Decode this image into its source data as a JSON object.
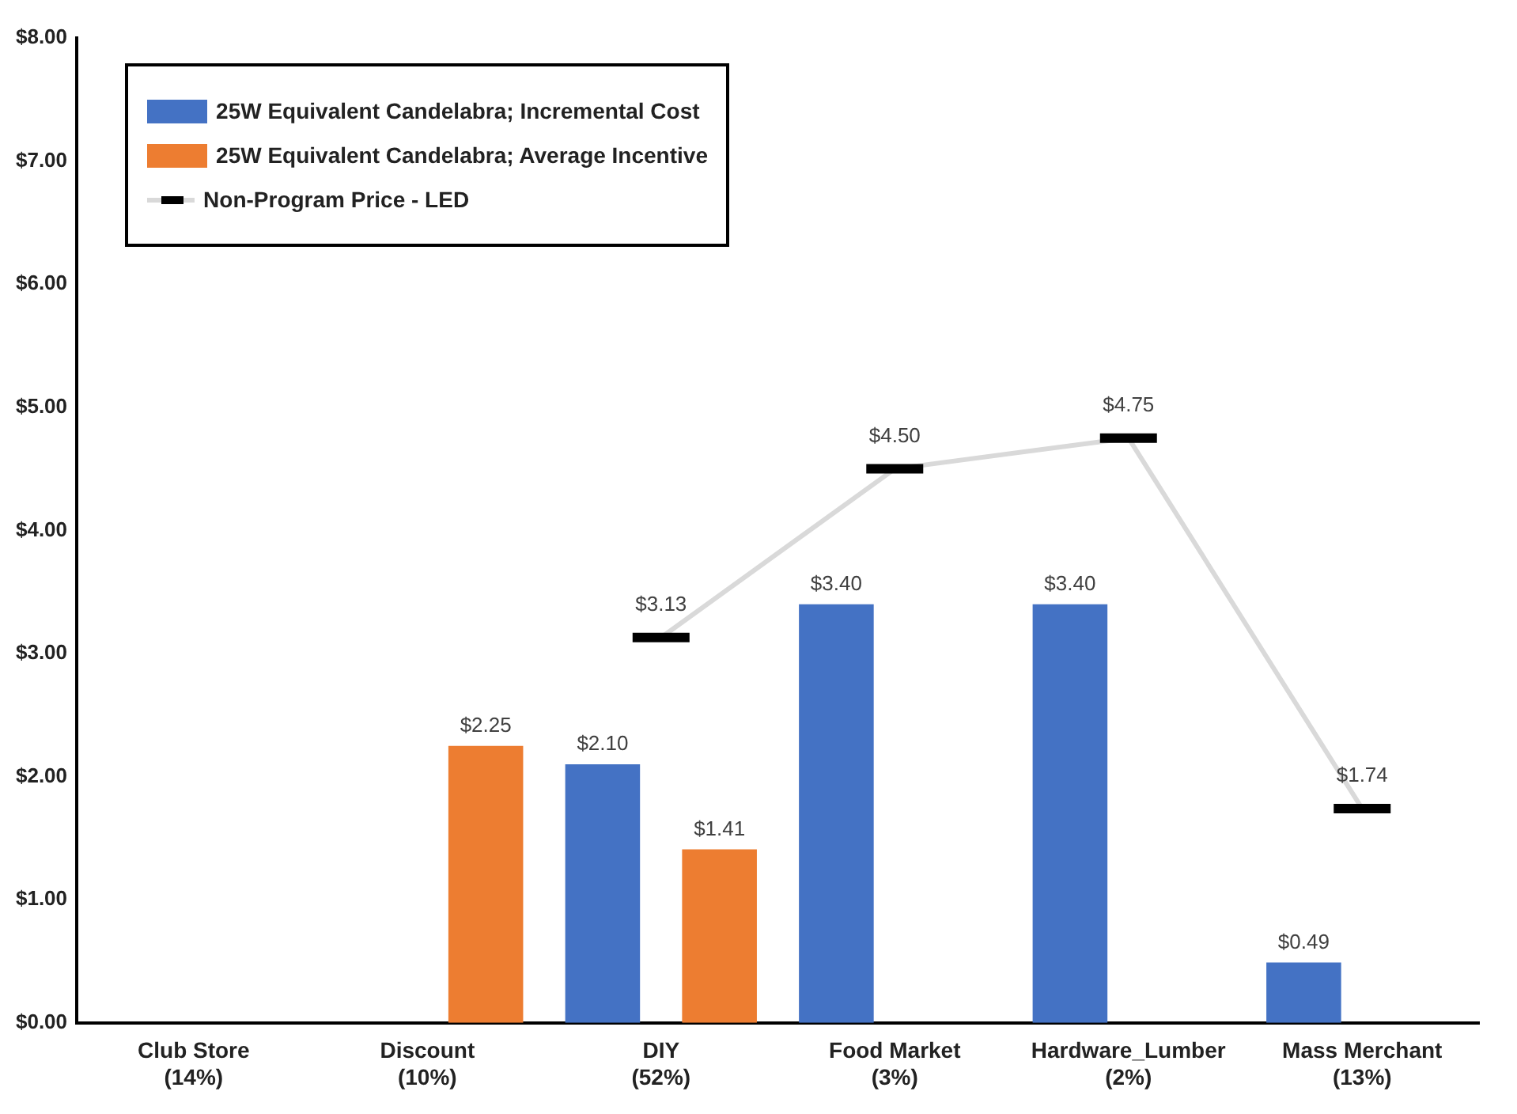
{
  "chart_data": {
    "type": "bar",
    "categories": [
      "Club Store\n(14%)",
      "Discount\n(10%)",
      "DIY\n(52%)",
      "Food Market\n(3%)",
      "Hardware_Lumber\n(2%)",
      "Mass Merchant\n(13%)"
    ],
    "series": [
      {
        "name": "25W Equivalent Candelabra;  Incremental Cost",
        "color": "#4472c4",
        "values": [
          null,
          null,
          2.1,
          3.4,
          3.4,
          0.49
        ],
        "value_labels": [
          null,
          null,
          "$2.10",
          "$3.40",
          "$3.40",
          "$0.49"
        ]
      },
      {
        "name": "25W Equivalent Candelabra; Average Incentive",
        "color": "#ed7d31",
        "values": [
          null,
          2.25,
          1.41,
          null,
          null,
          null
        ],
        "value_labels": [
          null,
          "$2.25",
          "$1.41",
          null,
          null,
          null
        ]
      },
      {
        "name": "Non-Program Price - LED",
        "type": "line",
        "color": "#d9d9d9",
        "values": [
          null,
          null,
          3.13,
          4.5,
          4.75,
          1.74
        ],
        "value_labels": [
          null,
          null,
          "$3.13",
          "$4.50",
          "$4.75",
          "$1.74"
        ]
      }
    ],
    "ylim": [
      0,
      8
    ],
    "yticks": [
      {
        "value": 0,
        "label": "$0.00"
      },
      {
        "value": 1,
        "label": "$1.00"
      },
      {
        "value": 2,
        "label": "$2.00"
      },
      {
        "value": 3,
        "label": "$3.00"
      },
      {
        "value": 4,
        "label": "$4.00"
      },
      {
        "value": 5,
        "label": "$5.00"
      },
      {
        "value": 6,
        "label": "$6.00"
      },
      {
        "value": 7,
        "label": "$7.00"
      },
      {
        "value": 8,
        "label": "$8.00"
      }
    ],
    "grid": false,
    "legend": "top left"
  }
}
